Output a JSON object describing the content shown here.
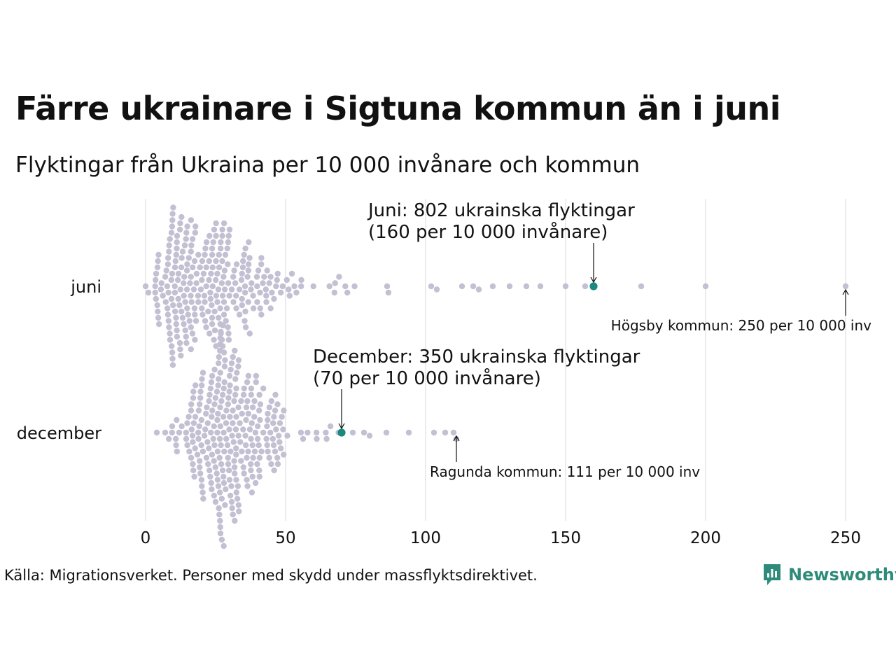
{
  "header": {
    "title": "Färre ukrainare i Sigtuna kommun än i juni",
    "subtitle": "Flyktingar från Ukraina per 10 000 invånare och kommun"
  },
  "footer": {
    "source": "Källa: Migrationsverket. Personer med skydd under massflyktsdirektivet.",
    "logo_text": "Newsworthy"
  },
  "colors": {
    "dot": "#c2c0d2",
    "highlight": "#1a8a7e",
    "grid": "#d9d9d9",
    "logo": "#2e8b7a"
  },
  "chart_data": {
    "type": "scatter",
    "subtype": "beeswarm",
    "title": "Färre ukrainare i Sigtuna kommun än i juni",
    "subtitle": "Flyktingar från Ukraina per 10 000 invånare och kommun",
    "xlim": [
      0,
      250
    ],
    "x_ticks": [
      0,
      50,
      100,
      150,
      200,
      250
    ],
    "grid": true,
    "categories": [
      "juni",
      "december"
    ],
    "series": [
      {
        "name": "juni",
        "highlight": {
          "label": "Sigtuna kommun",
          "value": 160
        },
        "outliers": [
          0,
          1,
          102,
          104,
          113,
          117,
          119,
          124,
          130,
          136,
          141,
          150,
          157,
          177,
          200,
          250
        ],
        "bulk_distribution": {
          "n": 274,
          "min": 2,
          "max": 96,
          "mode": 8,
          "description": "right-skewed bulk, densest around 8–20"
        }
      },
      {
        "name": "december",
        "highlight": {
          "label": "Sigtuna kommun",
          "value": 70
        },
        "outliers": [
          4,
          7,
          74,
          78,
          80,
          86,
          94,
          103,
          107,
          110,
          111
        ],
        "bulk_distribution": {
          "n": 279,
          "min": 8,
          "max": 72,
          "mode": 28,
          "description": "bulk densest around 20–35"
        }
      }
    ],
    "annotations": [
      {
        "series": "juni",
        "x": 160,
        "text_lines": [
          "Juni: 802 ukrainska flyktingar",
          "(160 per 10 000 invånare)"
        ]
      },
      {
        "series": "juni",
        "x": 250,
        "text": "Högsby kommun: 250 per 10 000 inv"
      },
      {
        "series": "december",
        "x": 70,
        "text_lines": [
          "December: 350 ukrainska flyktingar",
          "(70 per 10 000 invånare)"
        ]
      },
      {
        "series": "december",
        "x": 111,
        "text": "Ragunda kommun: 111 per 10 000 inv"
      }
    ],
    "source": "Källa: Migrationsverket. Personer med skydd under massflyktsdirektivet."
  }
}
